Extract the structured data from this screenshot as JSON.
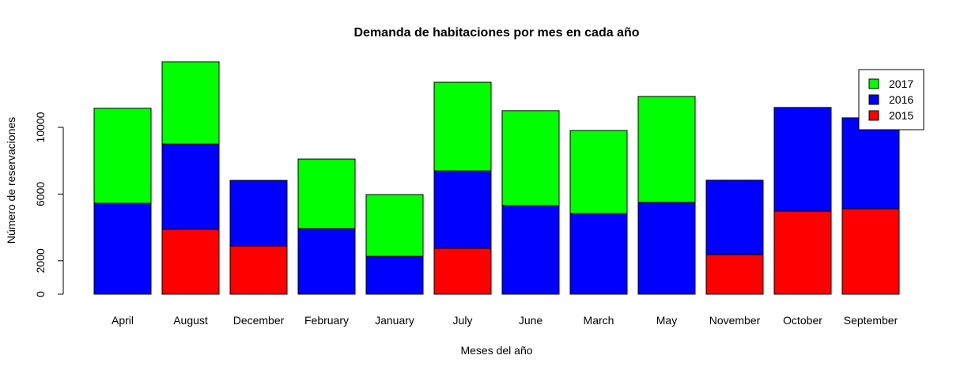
{
  "chart_data": {
    "type": "stacked_bar",
    "title": "Demanda de habitaciones por mes en cada año",
    "x_label": "Meses del año",
    "y_label": "Número de reservaciones",
    "categories": [
      "April",
      "August",
      "December",
      "February",
      "January",
      "July",
      "June",
      "March",
      "May",
      "November",
      "October",
      "September"
    ],
    "series": [
      {
        "name": "2015",
        "color": "#ff0000",
        "values": [
          0,
          3890,
          2890,
          0,
          0,
          2750,
          0,
          0,
          0,
          2370,
          4980,
          5120
        ]
      },
      {
        "name": "2016",
        "color": "#0000ff",
        "values": [
          5450,
          5110,
          3930,
          3930,
          2270,
          4640,
          5310,
          4830,
          5500,
          4460,
          6210,
          5450
        ]
      },
      {
        "name": "2017",
        "color": "#00ff00",
        "values": [
          5690,
          4930,
          0,
          4170,
          3700,
          5310,
          5690,
          4980,
          6350,
          0,
          0,
          0
        ]
      }
    ],
    "ylim": [
      0,
      14000
    ],
    "yticks": [
      0,
      2000,
      6000,
      10000
    ],
    "legend": "top-right"
  }
}
